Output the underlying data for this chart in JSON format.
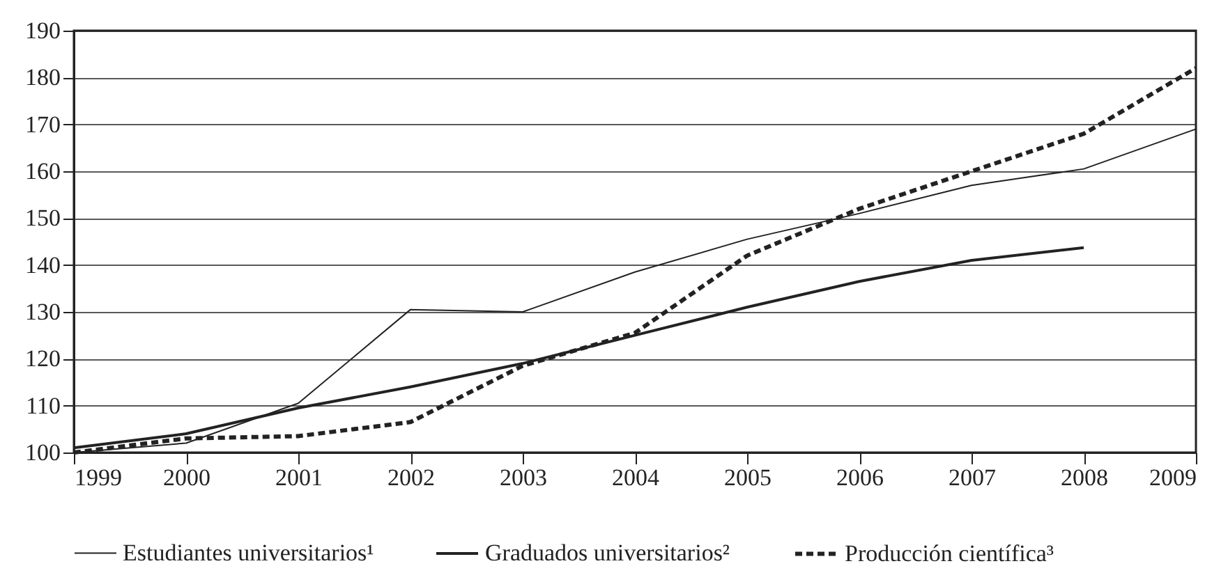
{
  "chart_data": {
    "type": "line",
    "x": [
      1999,
      2000,
      2001,
      2002,
      2003,
      2004,
      2005,
      2006,
      2007,
      2008,
      2009
    ],
    "series": [
      {
        "name": "Estudiantes universitarios¹",
        "color": "#222222",
        "line_style": "solid",
        "values": [
          100,
          102,
          110.5,
          130.5,
          130,
          138.5,
          145.5,
          151,
          157,
          160.5,
          169
        ]
      },
      {
        "name": "Graduados universitarios²",
        "color": "#222222",
        "line_style": "solid",
        "values": [
          101,
          104,
          109.5,
          114,
          119,
          125,
          131,
          136.5,
          141,
          143.7,
          null
        ]
      },
      {
        "name": "Producción científica³",
        "color": "#222222",
        "line_style": "dashed",
        "values": [
          100,
          103,
          103.5,
          106.5,
          118.5,
          125.5,
          142,
          152,
          160,
          168,
          182
        ]
      }
    ],
    "xlim": [
      1999,
      2009
    ],
    "xticks": [
      1999,
      2000,
      2001,
      2002,
      2003,
      2004,
      2005,
      2006,
      2007,
      2008,
      2009
    ],
    "ylim": [
      100,
      190
    ],
    "yticks": [
      100,
      110,
      120,
      130,
      140,
      150,
      160,
      170,
      180,
      190
    ],
    "grid": "y",
    "legend": "bottom",
    "marker": "none"
  }
}
